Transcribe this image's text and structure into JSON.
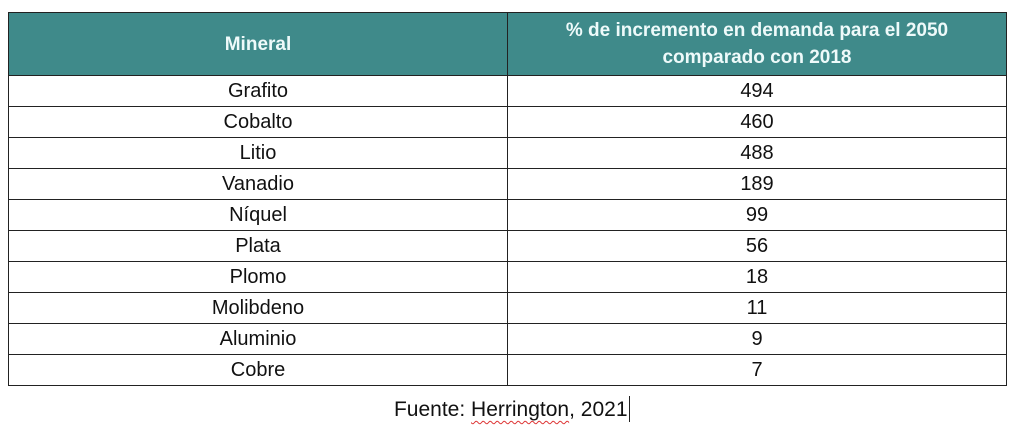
{
  "table": {
    "headers": [
      "Mineral",
      "% de incremento en demanda para el 2050 comparado con 2018"
    ],
    "rows": [
      {
        "mineral": "Grafito",
        "value": "494"
      },
      {
        "mineral": "Cobalto",
        "value": "460"
      },
      {
        "mineral": "Litio",
        "value": "488"
      },
      {
        "mineral": "Vanadio",
        "value": "189"
      },
      {
        "mineral": "Níquel",
        "value": "99"
      },
      {
        "mineral": "Plata",
        "value": "56"
      },
      {
        "mineral": "Plomo",
        "value": "18"
      },
      {
        "mineral": "Molibdeno",
        "value": "11"
      },
      {
        "mineral": "Aluminio",
        "value": "9"
      },
      {
        "mineral": "Cobre",
        "value": "7"
      }
    ],
    "header_color": "#3f8a8a"
  },
  "caption": {
    "prefix": "Fuente: ",
    "author": "Herrington",
    "suffix": ", 2021"
  }
}
